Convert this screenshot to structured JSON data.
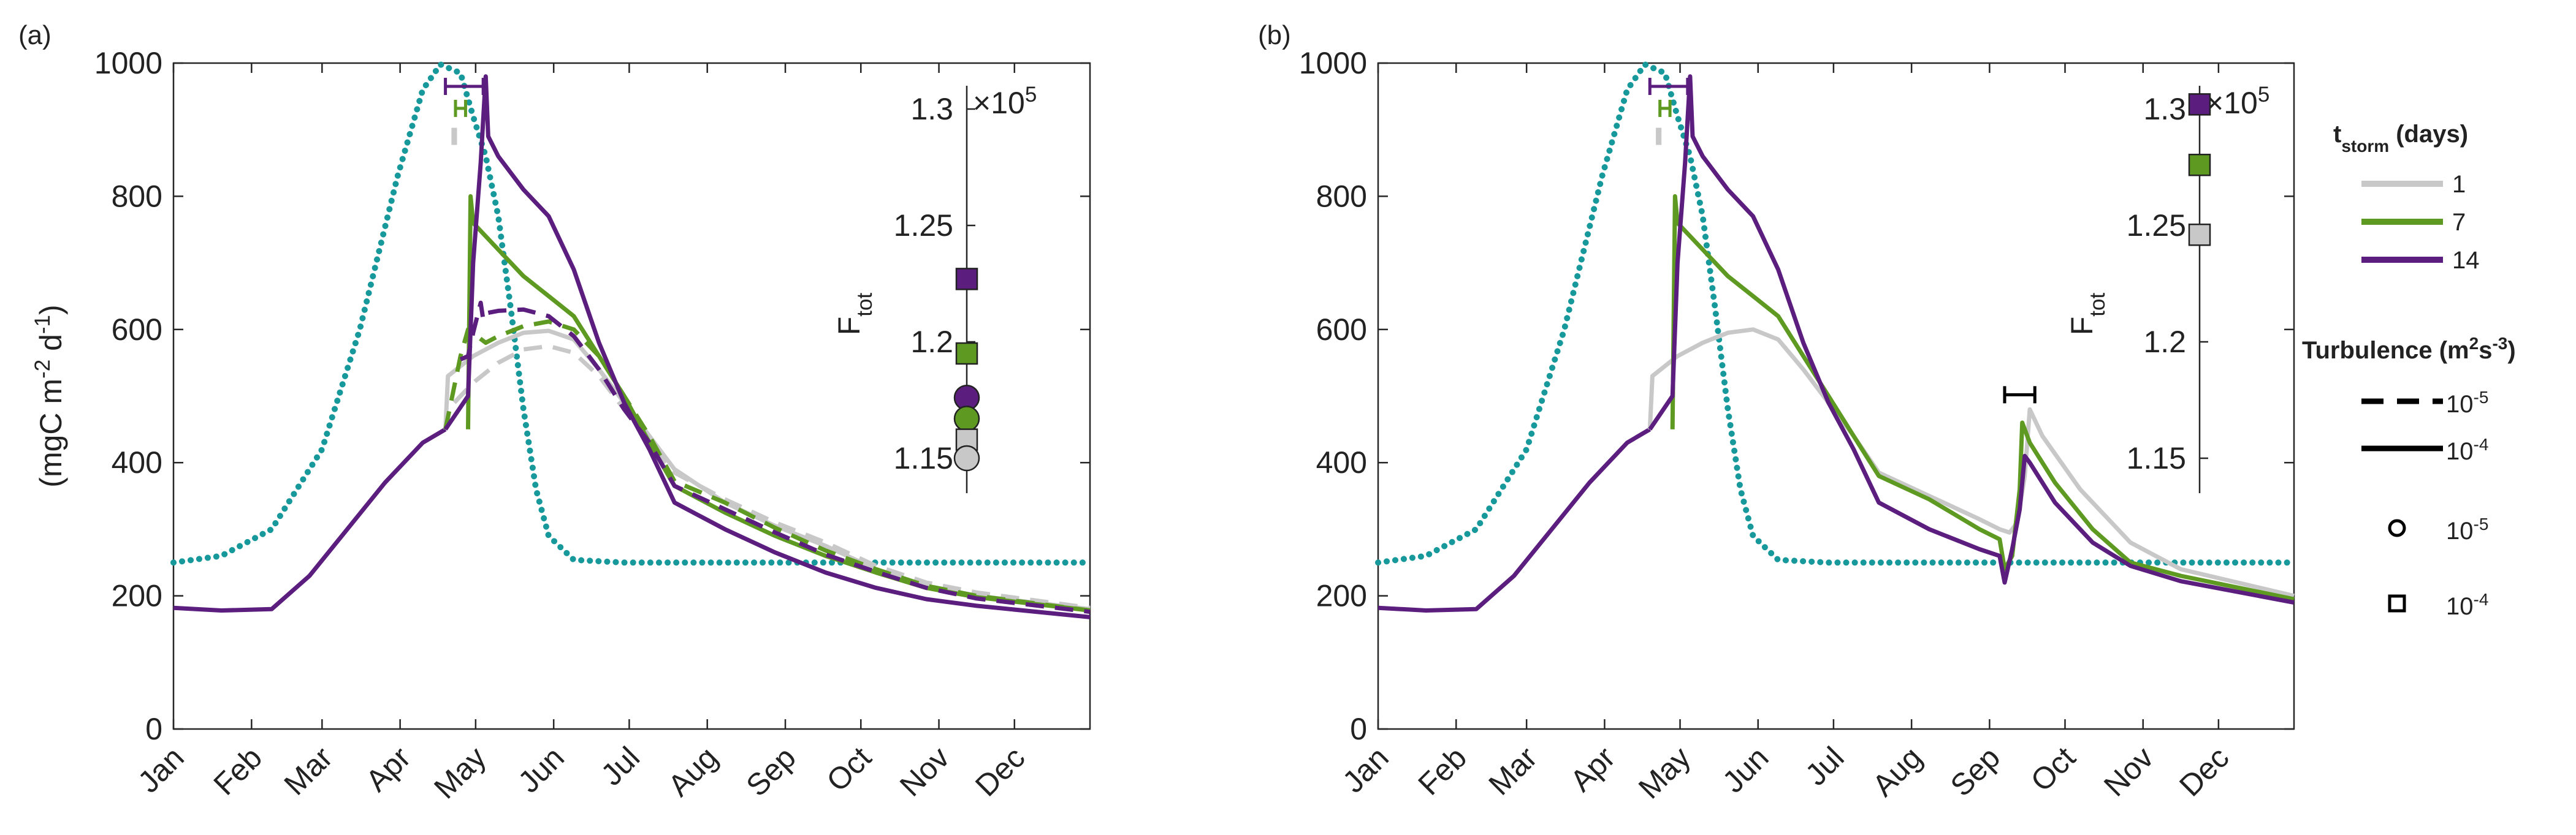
{
  "colors": {
    "teal": "#17999B",
    "grey": "#C8C8C8",
    "green": "#5E9A22",
    "purple": "#5B1D7E",
    "black": "#000000"
  },
  "chart_data": [
    {
      "panel_label": "(a)",
      "type": "line",
      "ylabel": "(mgC m-2 d-1)",
      "ylim": [
        0,
        1000
      ],
      "yticks": [
        0,
        200,
        400,
        600,
        800,
        1000
      ],
      "x_unit": "day of year",
      "xlim": [
        1,
        365
      ],
      "xtick_labels": [
        "Jan",
        "Feb",
        "Mar",
        "Apr",
        "May",
        "Jun",
        "Jul",
        "Aug",
        "Sep",
        "Oct",
        "Nov",
        "Dec"
      ],
      "series": [
        {
          "key": "teal",
          "color": "teal",
          "style": "dotted",
          "x": [
            1,
            20,
            40,
            60,
            75,
            90,
            100,
            107,
            115,
            120,
            125,
            130,
            135,
            140,
            145,
            150,
            160,
            180,
            200,
            260,
            365
          ],
          "y": [
            250,
            260,
            300,
            420,
            600,
            830,
            960,
            998,
            985,
            920,
            860,
            770,
            630,
            480,
            360,
            290,
            254,
            250,
            250,
            250,
            250
          ]
        },
        {
          "key": "purple-base",
          "color": "purple",
          "style": "solid",
          "x": [
            1,
            20,
            40,
            55,
            70,
            85,
            100,
            109
          ],
          "y": [
            182,
            178,
            180,
            230,
            300,
            370,
            430,
            450
          ]
        },
        {
          "key": "grey-solid",
          "color": "grey",
          "style": "solid",
          "x": [
            109,
            110,
            120,
            130,
            140,
            150,
            160,
            170,
            180,
            190,
            200,
            220,
            240,
            260,
            280,
            300,
            320,
            365
          ],
          "y": [
            450,
            530,
            560,
            580,
            595,
            598,
            585,
            540,
            490,
            440,
            390,
            340,
            305,
            275,
            240,
            215,
            200,
            180
          ]
        },
        {
          "key": "grey-dashed",
          "color": "grey",
          "style": "dashed",
          "x": [
            109,
            110,
            120,
            130,
            140,
            150,
            160,
            170,
            180,
            190,
            200,
            220,
            240,
            260,
            280,
            300,
            320,
            365
          ],
          "y": [
            450,
            480,
            520,
            550,
            570,
            575,
            565,
            530,
            480,
            430,
            385,
            345,
            310,
            280,
            245,
            220,
            205,
            182
          ]
        },
        {
          "key": "green-solid",
          "color": "green",
          "style": "solid",
          "x": [
            118,
            119,
            120,
            130,
            140,
            150,
            160,
            170,
            180,
            190,
            200,
            220,
            240,
            260,
            280,
            300,
            320,
            365
          ],
          "y": [
            450,
            800,
            760,
            720,
            680,
            650,
            620,
            560,
            500,
            430,
            365,
            325,
            290,
            260,
            235,
            212,
            198,
            178
          ]
        },
        {
          "key": "green-dashed",
          "color": "green",
          "style": "dashed",
          "x": [
            109,
            115,
            118,
            125,
            130,
            140,
            150,
            160,
            170,
            180,
            190,
            200,
            220,
            240,
            260,
            280,
            300,
            320,
            365
          ],
          "y": [
            450,
            560,
            600,
            580,
            590,
            605,
            612,
            600,
            560,
            500,
            440,
            372,
            340,
            302,
            268,
            240,
            215,
            200,
            178
          ]
        },
        {
          "key": "purple-solid",
          "color": "purple",
          "style": "solid",
          "x": [
            109,
            118,
            120,
            123,
            125,
            126,
            130,
            140,
            150,
            160,
            170,
            180,
            190,
            200,
            220,
            240,
            260,
            280,
            300,
            320,
            365
          ],
          "y": [
            450,
            500,
            700,
            850,
            980,
            890,
            860,
            810,
            770,
            690,
            580,
            490,
            420,
            340,
            300,
            265,
            235,
            212,
            195,
            185,
            168
          ]
        },
        {
          "key": "purple-dashed",
          "color": "purple",
          "style": "dashed",
          "x": [
            115,
            118,
            120,
            123,
            124,
            126,
            130,
            140,
            150,
            160,
            170,
            180,
            190,
            200,
            220,
            240,
            260,
            280,
            300,
            320,
            365
          ],
          "y": [
            555,
            560,
            595,
            640,
            615,
            625,
            628,
            630,
            620,
            590,
            540,
            480,
            430,
            365,
            330,
            295,
            262,
            236,
            212,
            196,
            176
          ]
        }
      ],
      "range_bars": [
        {
          "color": "purple",
          "x0": 109,
          "x1": 124,
          "y": 965
        },
        {
          "color": "green",
          "x0": 113,
          "x1": 117,
          "y": 932
        },
        {
          "color": "grey",
          "x0": 112,
          "x1": 113,
          "y": 890
        }
      ],
      "inset": {
        "label": "Ftot",
        "multiplier": "×10^5",
        "ylim": [
          1.135,
          1.31
        ],
        "yticks": [
          "1.15",
          "1.2",
          "1.25",
          "1.3"
        ],
        "markers": [
          {
            "shape": "square",
            "color": "purple",
            "value": 1.227
          },
          {
            "shape": "square",
            "color": "green",
            "value": 1.195
          },
          {
            "shape": "circle",
            "color": "purple",
            "value": 1.176
          },
          {
            "shape": "circle",
            "color": "green",
            "value": 1.167
          },
          {
            "shape": "square",
            "color": "grey",
            "value": 1.158
          },
          {
            "shape": "circle",
            "color": "grey",
            "value": 1.15
          }
        ]
      }
    },
    {
      "panel_label": "(b)",
      "type": "line",
      "ylim": [
        0,
        1000
      ],
      "yticks": [
        0,
        200,
        400,
        600,
        800,
        1000
      ],
      "x_unit": "day of year",
      "xlim": [
        1,
        365
      ],
      "xtick_labels": [
        "Jan",
        "Feb",
        "Mar",
        "Apr",
        "May",
        "Jun",
        "Jul",
        "Aug",
        "Sep",
        "Oct",
        "Nov",
        "Dec"
      ],
      "series": [
        {
          "key": "teal",
          "color": "teal",
          "style": "dotted",
          "x": [
            1,
            20,
            40,
            60,
            75,
            90,
            100,
            107,
            115,
            120,
            125,
            130,
            135,
            140,
            145,
            150,
            160,
            180,
            200,
            260,
            365
          ],
          "y": [
            250,
            260,
            300,
            420,
            600,
            830,
            960,
            998,
            985,
            920,
            860,
            770,
            630,
            480,
            360,
            290,
            254,
            250,
            250,
            250,
            250
          ]
        },
        {
          "key": "purple-base",
          "color": "purple",
          "style": "solid",
          "x": [
            1,
            20,
            40,
            55,
            70,
            85,
            100,
            109
          ],
          "y": [
            182,
            178,
            180,
            230,
            300,
            370,
            430,
            450
          ]
        },
        {
          "key": "grey-solid",
          "color": "grey",
          "style": "solid",
          "x": [
            109,
            110,
            120,
            130,
            140,
            150,
            160,
            170,
            180,
            190,
            200,
            220,
            240,
            248,
            252,
            255,
            258,
            260,
            265,
            280,
            300,
            320,
            365
          ],
          "y": [
            450,
            530,
            560,
            580,
            595,
            600,
            585,
            540,
            490,
            440,
            385,
            350,
            315,
            300,
            295,
            310,
            380,
            480,
            440,
            360,
            280,
            240,
            200
          ]
        },
        {
          "key": "green-solid",
          "color": "green",
          "style": "solid",
          "x": [
            118,
            119,
            120,
            130,
            140,
            150,
            160,
            170,
            180,
            190,
            200,
            220,
            240,
            248,
            250,
            253,
            256,
            257,
            260,
            270,
            285,
            300,
            320,
            365
          ],
          "y": [
            450,
            800,
            760,
            720,
            680,
            650,
            620,
            560,
            500,
            440,
            380,
            345,
            300,
            285,
            240,
            260,
            360,
            460,
            430,
            370,
            300,
            250,
            230,
            195
          ]
        },
        {
          "key": "purple-solid",
          "color": "purple",
          "style": "solid",
          "x": [
            109,
            118,
            120,
            123,
            125,
            126,
            130,
            140,
            150,
            160,
            170,
            180,
            190,
            200,
            220,
            240,
            248,
            250,
            253,
            256,
            258,
            260,
            270,
            285,
            300,
            320,
            365
          ],
          "y": [
            450,
            500,
            700,
            850,
            980,
            890,
            860,
            810,
            770,
            690,
            580,
            490,
            420,
            340,
            300,
            270,
            260,
            220,
            270,
            330,
            410,
            400,
            340,
            280,
            245,
            222,
            190
          ]
        }
      ],
      "range_bars": [
        {
          "color": "purple",
          "x0": 109,
          "x1": 124,
          "y": 965
        },
        {
          "color": "green",
          "x0": 113,
          "x1": 117,
          "y": 932
        },
        {
          "color": "grey",
          "x0": 112,
          "x1": 113,
          "y": 890
        },
        {
          "color": "black",
          "x0": 250,
          "x1": 262,
          "y": 502
        }
      ],
      "inset": {
        "label": "Ftot",
        "multiplier": "×10^5",
        "ylim": [
          1.135,
          1.31
        ],
        "yticks": [
          "1.15",
          "1.2",
          "1.25",
          "1.3"
        ],
        "markers": [
          {
            "shape": "square",
            "color": "purple",
            "value": 1.302
          },
          {
            "shape": "square",
            "color": "green",
            "value": 1.276
          },
          {
            "shape": "square",
            "color": "grey",
            "value": 1.246
          }
        ]
      }
    }
  ],
  "legend": {
    "storm_title": "tstorm (days)",
    "storm_items": [
      {
        "label": "1",
        "color": "grey"
      },
      {
        "label": "7",
        "color": "green"
      },
      {
        "label": "14",
        "color": "purple"
      }
    ],
    "turb_title": "Turbulence (m2s-3)",
    "turb_items": [
      {
        "label": "10-5",
        "style": "dashed"
      },
      {
        "label": "10-4",
        "style": "solid"
      }
    ],
    "marker_items": [
      {
        "label": "10-5",
        "shape": "circle"
      },
      {
        "label": "10-4",
        "shape": "square"
      }
    ]
  }
}
